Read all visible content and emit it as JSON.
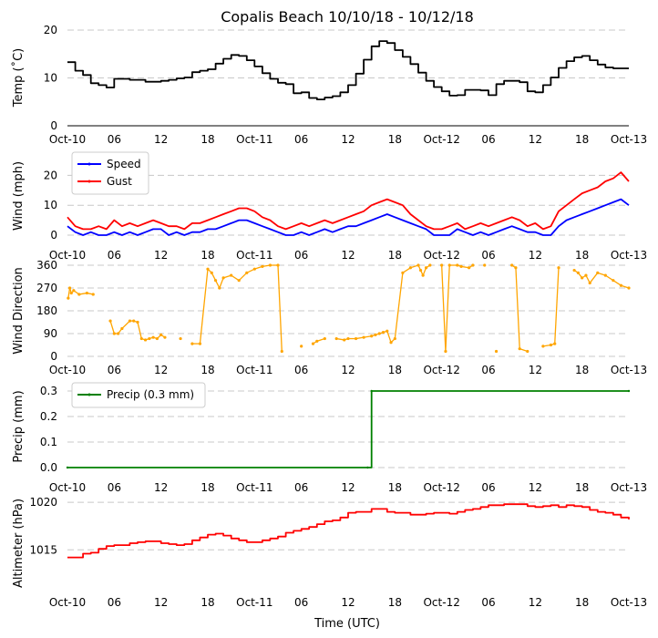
{
  "title": "Copalis Beach 10/10/18 - 10/12/18",
  "xlabel": "Time (UTC)",
  "x_ticks": [
    "Oct-10",
    "06",
    "12",
    "18",
    "Oct-11",
    "06",
    "12",
    "18",
    "Oct-12",
    "06",
    "12",
    "18",
    "Oct-13"
  ],
  "x_range_hours": [
    0,
    72
  ],
  "colors": {
    "temp": "#000000",
    "speed": "#0000ff",
    "gust": "#ff0000",
    "direction": "#ffa500",
    "precip": "#008000",
    "altimeter": "#ff0000",
    "grid": "#c8c8c8"
  },
  "chart_data": [
    {
      "type": "line",
      "id": "temp",
      "ylabel": "Temp (˚C)",
      "ylim": [
        0,
        20
      ],
      "y_ticks": [
        {
          "v": 0,
          "label": "0"
        },
        {
          "v": 10,
          "label": "10"
        },
        {
          "v": 20,
          "label": "20"
        }
      ],
      "step": true,
      "series": [
        {
          "name": "Temp",
          "color": "#000000",
          "x": [
            0,
            1,
            2,
            3,
            4,
            5,
            6,
            7,
            8,
            9,
            10,
            11,
            12,
            13,
            14,
            15,
            16,
            17,
            18,
            19,
            20,
            21,
            22,
            23,
            24,
            25,
            26,
            27,
            28,
            29,
            30,
            31,
            32,
            33,
            34,
            35,
            36,
            37,
            38,
            39,
            40,
            41,
            42,
            43,
            44,
            45,
            46,
            47,
            48,
            49,
            50,
            51,
            52,
            53,
            54,
            55,
            56,
            57,
            58,
            59,
            60,
            61,
            62,
            63,
            64,
            65,
            66,
            67,
            68,
            69,
            70,
            71,
            72
          ],
          "values": [
            13.3,
            11.5,
            10.6,
            8.9,
            8.5,
            8.0,
            9.8,
            9.8,
            9.6,
            9.6,
            9.2,
            9.2,
            9.4,
            9.6,
            9.9,
            10.1,
            11.2,
            11.5,
            11.8,
            13.0,
            14.0,
            14.8,
            14.6,
            13.7,
            12.4,
            11.0,
            9.8,
            9.0,
            8.7,
            6.8,
            7.0,
            5.8,
            5.5,
            5.9,
            6.2,
            7.0,
            8.5,
            10.9,
            13.8,
            16.6,
            17.7,
            17.3,
            15.8,
            14.4,
            12.9,
            11.1,
            9.4,
            8.1,
            7.2,
            6.3,
            6.4,
            7.5,
            7.5,
            7.4,
            6.4,
            8.7,
            9.4,
            9.4,
            9.1,
            7.2,
            7.0,
            8.5,
            10.1,
            12.1,
            13.5,
            14.3,
            14.6,
            13.7,
            12.8,
            12.2,
            12.0,
            12.0,
            12.0
          ]
        }
      ]
    },
    {
      "type": "line",
      "id": "wind",
      "ylabel": "Wind (mph)",
      "ylim": [
        0,
        25
      ],
      "y_ticks": [
        {
          "v": 0,
          "label": "0"
        },
        {
          "v": 10,
          "label": "10"
        },
        {
          "v": 20,
          "label": "20"
        }
      ],
      "legend": "upper-left",
      "series": [
        {
          "name": "Speed",
          "color": "#0000ff",
          "x": [
            0,
            1,
            2,
            3,
            4,
            5,
            6,
            7,
            8,
            9,
            10,
            11,
            12,
            13,
            14,
            15,
            16,
            17,
            18,
            19,
            20,
            21,
            22,
            23,
            24,
            25,
            26,
            27,
            28,
            29,
            30,
            31,
            32,
            33,
            34,
            35,
            36,
            37,
            38,
            39,
            40,
            41,
            42,
            43,
            44,
            45,
            46,
            47,
            48,
            49,
            50,
            51,
            52,
            53,
            54,
            55,
            56,
            57,
            58,
            59,
            60,
            61,
            62,
            63,
            64,
            65,
            66,
            67,
            68,
            69,
            70,
            71,
            72
          ],
          "values": [
            3,
            1,
            0,
            1,
            0,
            0,
            1,
            0,
            1,
            0,
            1,
            2,
            2,
            0,
            1,
            0,
            1,
            1,
            2,
            2,
            3,
            4,
            5,
            5,
            4,
            3,
            2,
            1,
            0,
            0,
            1,
            0,
            1,
            2,
            1,
            2,
            3,
            3,
            4,
            5,
            6,
            7,
            6,
            5,
            4,
            3,
            2,
            0,
            0,
            0,
            2,
            1,
            0,
            1,
            0,
            1,
            2,
            3,
            2,
            1,
            1,
            0,
            0,
            3,
            5,
            6,
            7,
            8,
            9,
            10,
            11,
            12,
            10
          ]
        },
        {
          "name": "Gust",
          "color": "#ff0000",
          "x": [
            0,
            1,
            2,
            3,
            4,
            5,
            6,
            7,
            8,
            9,
            10,
            11,
            12,
            13,
            14,
            15,
            16,
            17,
            18,
            19,
            20,
            21,
            22,
            23,
            24,
            25,
            26,
            27,
            28,
            29,
            30,
            31,
            32,
            33,
            34,
            35,
            36,
            37,
            38,
            39,
            40,
            41,
            42,
            43,
            44,
            45,
            46,
            47,
            48,
            49,
            50,
            51,
            52,
            53,
            54,
            55,
            56,
            57,
            58,
            59,
            60,
            61,
            62,
            63,
            64,
            65,
            66,
            67,
            68,
            69,
            70,
            71,
            72
          ],
          "values": [
            6,
            3,
            2,
            2,
            3,
            2,
            5,
            3,
            4,
            3,
            4,
            5,
            4,
            3,
            3,
            2,
            4,
            4,
            5,
            6,
            7,
            8,
            9,
            9,
            8,
            6,
            5,
            3,
            2,
            3,
            4,
            3,
            4,
            5,
            4,
            5,
            6,
            7,
            8,
            10,
            11,
            12,
            11,
            10,
            7,
            5,
            3,
            2,
            2,
            3,
            4,
            2,
            3,
            4,
            3,
            4,
            5,
            6,
            5,
            3,
            4,
            2,
            3,
            8,
            10,
            12,
            14,
            15,
            16,
            18,
            19,
            21,
            18
          ]
        }
      ]
    },
    {
      "type": "scatter",
      "id": "direction",
      "ylabel": "Wind Direction",
      "ylim": [
        0,
        360
      ],
      "y_ticks": [
        {
          "v": 0,
          "label": "0"
        },
        {
          "v": 90,
          "label": "90"
        },
        {
          "v": 180,
          "label": "180"
        },
        {
          "v": 270,
          "label": "270"
        },
        {
          "v": 360,
          "label": "360"
        }
      ],
      "series": [
        {
          "name": "Direction",
          "color": "#ffa500",
          "x": [
            0.1,
            0.3,
            0.5,
            0.8,
            1.5,
            2.5,
            3.3,
            5.5,
            6.0,
            6.5,
            7.0,
            8.0,
            8.5,
            9.0,
            9.5,
            10.0,
            10.5,
            11.0,
            11.5,
            12.0,
            12.5,
            14.5,
            16.0,
            17.0,
            18.0,
            18.5,
            19.0,
            19.5,
            20.0,
            21.0,
            22.0,
            23.0,
            24.0,
            25.0,
            26.0,
            27.0,
            27.5,
            30.0,
            31.5,
            32.0,
            33.0,
            34.5,
            35.5,
            36.0,
            37.0,
            38.0,
            39.0,
            39.5,
            40.0,
            40.5,
            41.0,
            41.5,
            42.0,
            43.0,
            44.0,
            45.0,
            45.3,
            45.6,
            46.0,
            46.5,
            48.0,
            48.5,
            49.0,
            50.0,
            50.5,
            51.5,
            52.0,
            53.5,
            55.0,
            57.0,
            57.5,
            58.0,
            59.0,
            61.0,
            62.0,
            62.5,
            63.0,
            65.0,
            65.5,
            66.0,
            66.5,
            67.0,
            68.0,
            69.0,
            70.0,
            71.0,
            72.0
          ],
          "values": [
            230,
            270,
            250,
            260,
            245,
            250,
            245,
            140,
            90,
            90,
            110,
            140,
            140,
            135,
            70,
            65,
            70,
            75,
            70,
            85,
            75,
            70,
            50,
            50,
            345,
            330,
            300,
            270,
            310,
            320,
            300,
            330,
            345,
            355,
            360,
            360,
            20,
            40,
            50,
            60,
            70,
            70,
            65,
            70,
            70,
            75,
            80,
            85,
            90,
            95,
            100,
            55,
            70,
            330,
            350,
            360,
            340,
            320,
            350,
            360,
            360,
            20,
            360,
            360,
            355,
            350,
            360,
            360,
            20,
            360,
            350,
            30,
            20,
            40,
            45,
            50,
            350,
            340,
            330,
            310,
            320,
            290,
            330,
            320,
            300,
            280,
            270
          ]
        }
      ]
    },
    {
      "type": "line",
      "id": "precip",
      "ylabel": "Precip (mm)",
      "ylim": [
        0,
        0.3
      ],
      "y_ticks": [
        {
          "v": 0,
          "label": "0.0"
        },
        {
          "v": 0.1,
          "label": "0.1"
        },
        {
          "v": 0.2,
          "label": "0.2"
        },
        {
          "v": 0.3,
          "label": "0.3"
        }
      ],
      "legend": "upper-left",
      "step": true,
      "series": [
        {
          "name": "Precip (0.3 mm)",
          "color": "#008000",
          "x": [
            0,
            38.5,
            39,
            72
          ],
          "values": [
            0.0,
            0.0,
            0.3,
            0.3
          ]
        }
      ]
    },
    {
      "type": "line",
      "id": "altimeter",
      "ylabel": "Altimeter (hPa)",
      "ylim": [
        1011,
        1020.3
      ],
      "y_ticks": [
        {
          "v": 1015,
          "label": "1015"
        },
        {
          "v": 1020,
          "label": "1020"
        }
      ],
      "step": true,
      "series": [
        {
          "name": "Altimeter",
          "color": "#ff0000",
          "x": [
            0,
            1,
            2,
            3,
            4,
            5,
            6,
            7,
            8,
            9,
            10,
            11,
            12,
            13,
            14,
            15,
            16,
            17,
            18,
            19,
            20,
            21,
            22,
            23,
            24,
            25,
            26,
            27,
            28,
            29,
            30,
            31,
            32,
            33,
            34,
            35,
            36,
            37,
            38,
            39,
            40,
            41,
            42,
            43,
            44,
            45,
            46,
            47,
            48,
            49,
            50,
            51,
            52,
            53,
            54,
            55,
            56,
            57,
            58,
            59,
            60,
            61,
            62,
            63,
            64,
            65,
            66,
            67,
            68,
            69,
            70,
            71,
            72
          ],
          "values": [
            1014.2,
            1014.2,
            1014.6,
            1014.7,
            1015.1,
            1015.4,
            1015.5,
            1015.5,
            1015.7,
            1015.8,
            1015.9,
            1015.9,
            1015.7,
            1015.6,
            1015.5,
            1015.6,
            1016.0,
            1016.3,
            1016.6,
            1016.7,
            1016.5,
            1016.2,
            1016.0,
            1015.8,
            1015.8,
            1016.0,
            1016.2,
            1016.4,
            1016.8,
            1017.0,
            1017.2,
            1017.4,
            1017.7,
            1018.0,
            1018.1,
            1018.4,
            1018.9,
            1019.0,
            1019.0,
            1019.3,
            1019.3,
            1019.0,
            1018.9,
            1018.9,
            1018.7,
            1018.7,
            1018.8,
            1018.9,
            1018.9,
            1018.8,
            1019.0,
            1019.2,
            1019.3,
            1019.5,
            1019.7,
            1019.7,
            1019.8,
            1019.8,
            1019.8,
            1019.6,
            1019.5,
            1019.6,
            1019.7,
            1019.5,
            1019.7,
            1019.6,
            1019.5,
            1019.2,
            1019.0,
            1018.9,
            1018.7,
            1018.4,
            1018.2
          ]
        }
      ]
    }
  ]
}
